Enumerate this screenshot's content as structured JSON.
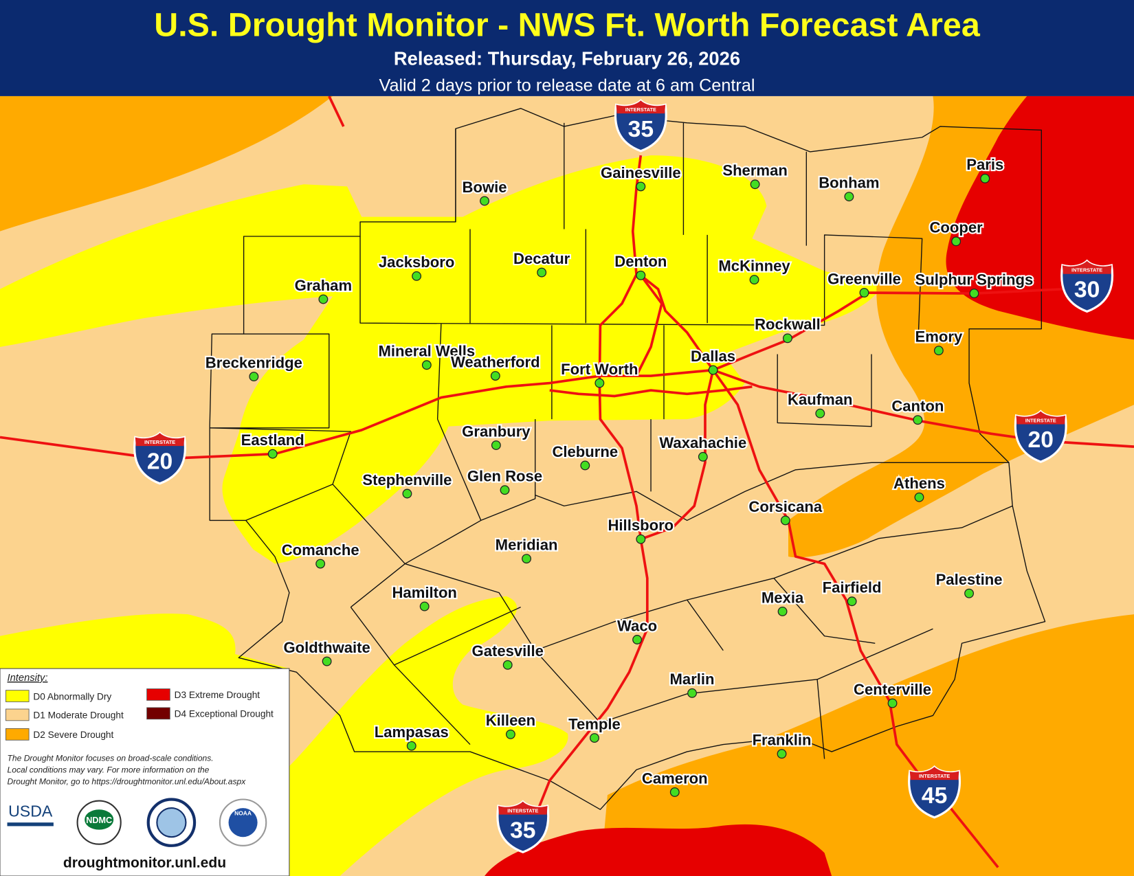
{
  "header": {
    "title": "U.S. Drought Monitor - NWS Ft. Worth Forecast Area",
    "released": "Released: Thursday, February 26, 2026",
    "valid": "Valid 2 days prior to release date at 6 am Central"
  },
  "cities": [
    "Bowie",
    "Gainesville",
    "Sherman",
    "Bonham",
    "Paris",
    "Cooper",
    "Jacksboro",
    "Decatur",
    "Denton",
    "McKinney",
    "Greenville",
    "Sulphur Springs",
    "Graham",
    "Rockwall",
    "Emory",
    "Breckenridge",
    "Mineral Wells",
    "Weatherford",
    "Fort Worth",
    "Dallas",
    "Kaufman",
    "Canton",
    "Eastland",
    "Granbury",
    "Cleburne",
    "Waxahachie",
    "Stephenville",
    "Glen Rose",
    "Athens",
    "Corsicana",
    "Hillsboro",
    "Comanche",
    "Meridian",
    "Palestine",
    "Hamilton",
    "Fairfield",
    "Mexia",
    "Waco",
    "Goldthwaite",
    "Gatesville",
    "Marlin",
    "Centerville",
    "Killeen",
    "Temple",
    "Lampasas",
    "Franklin",
    "Cameron"
  ],
  "shields": [
    {
      "word": "INTERSTATE",
      "number": "35"
    },
    {
      "word": "INTERSTATE",
      "number": "30"
    },
    {
      "word": "INTERSTATE",
      "number": "20"
    },
    {
      "word": "INTERSTATE",
      "number": "20"
    },
    {
      "word": "INTERSTATE",
      "number": "35"
    },
    {
      "word": "INTERSTATE",
      "number": "45"
    }
  ],
  "legend": {
    "title": "Intensity:",
    "items": [
      {
        "label": "D0 Abnormally Dry",
        "color": "#ffff00"
      },
      {
        "label": "D1 Moderate Drought",
        "color": "#fcd38e"
      },
      {
        "label": "D2 Severe Drought",
        "color": "#ffaa00"
      },
      {
        "label": "D3 Extreme Drought",
        "color": "#e60000"
      },
      {
        "label": "D4 Exceptional Drought",
        "color": "#730000"
      }
    ],
    "note": [
      "The Drought Monitor focuses on broad-scale conditions.",
      "Local conditions may vary. For more information on the",
      "Drought Monitor, go to https://droughtmonitor.unl.edu/About.aspx"
    ],
    "logos": [
      "USDA",
      "NDMC",
      "NOAA"
    ],
    "url": "droughtmonitor.unl.edu"
  }
}
